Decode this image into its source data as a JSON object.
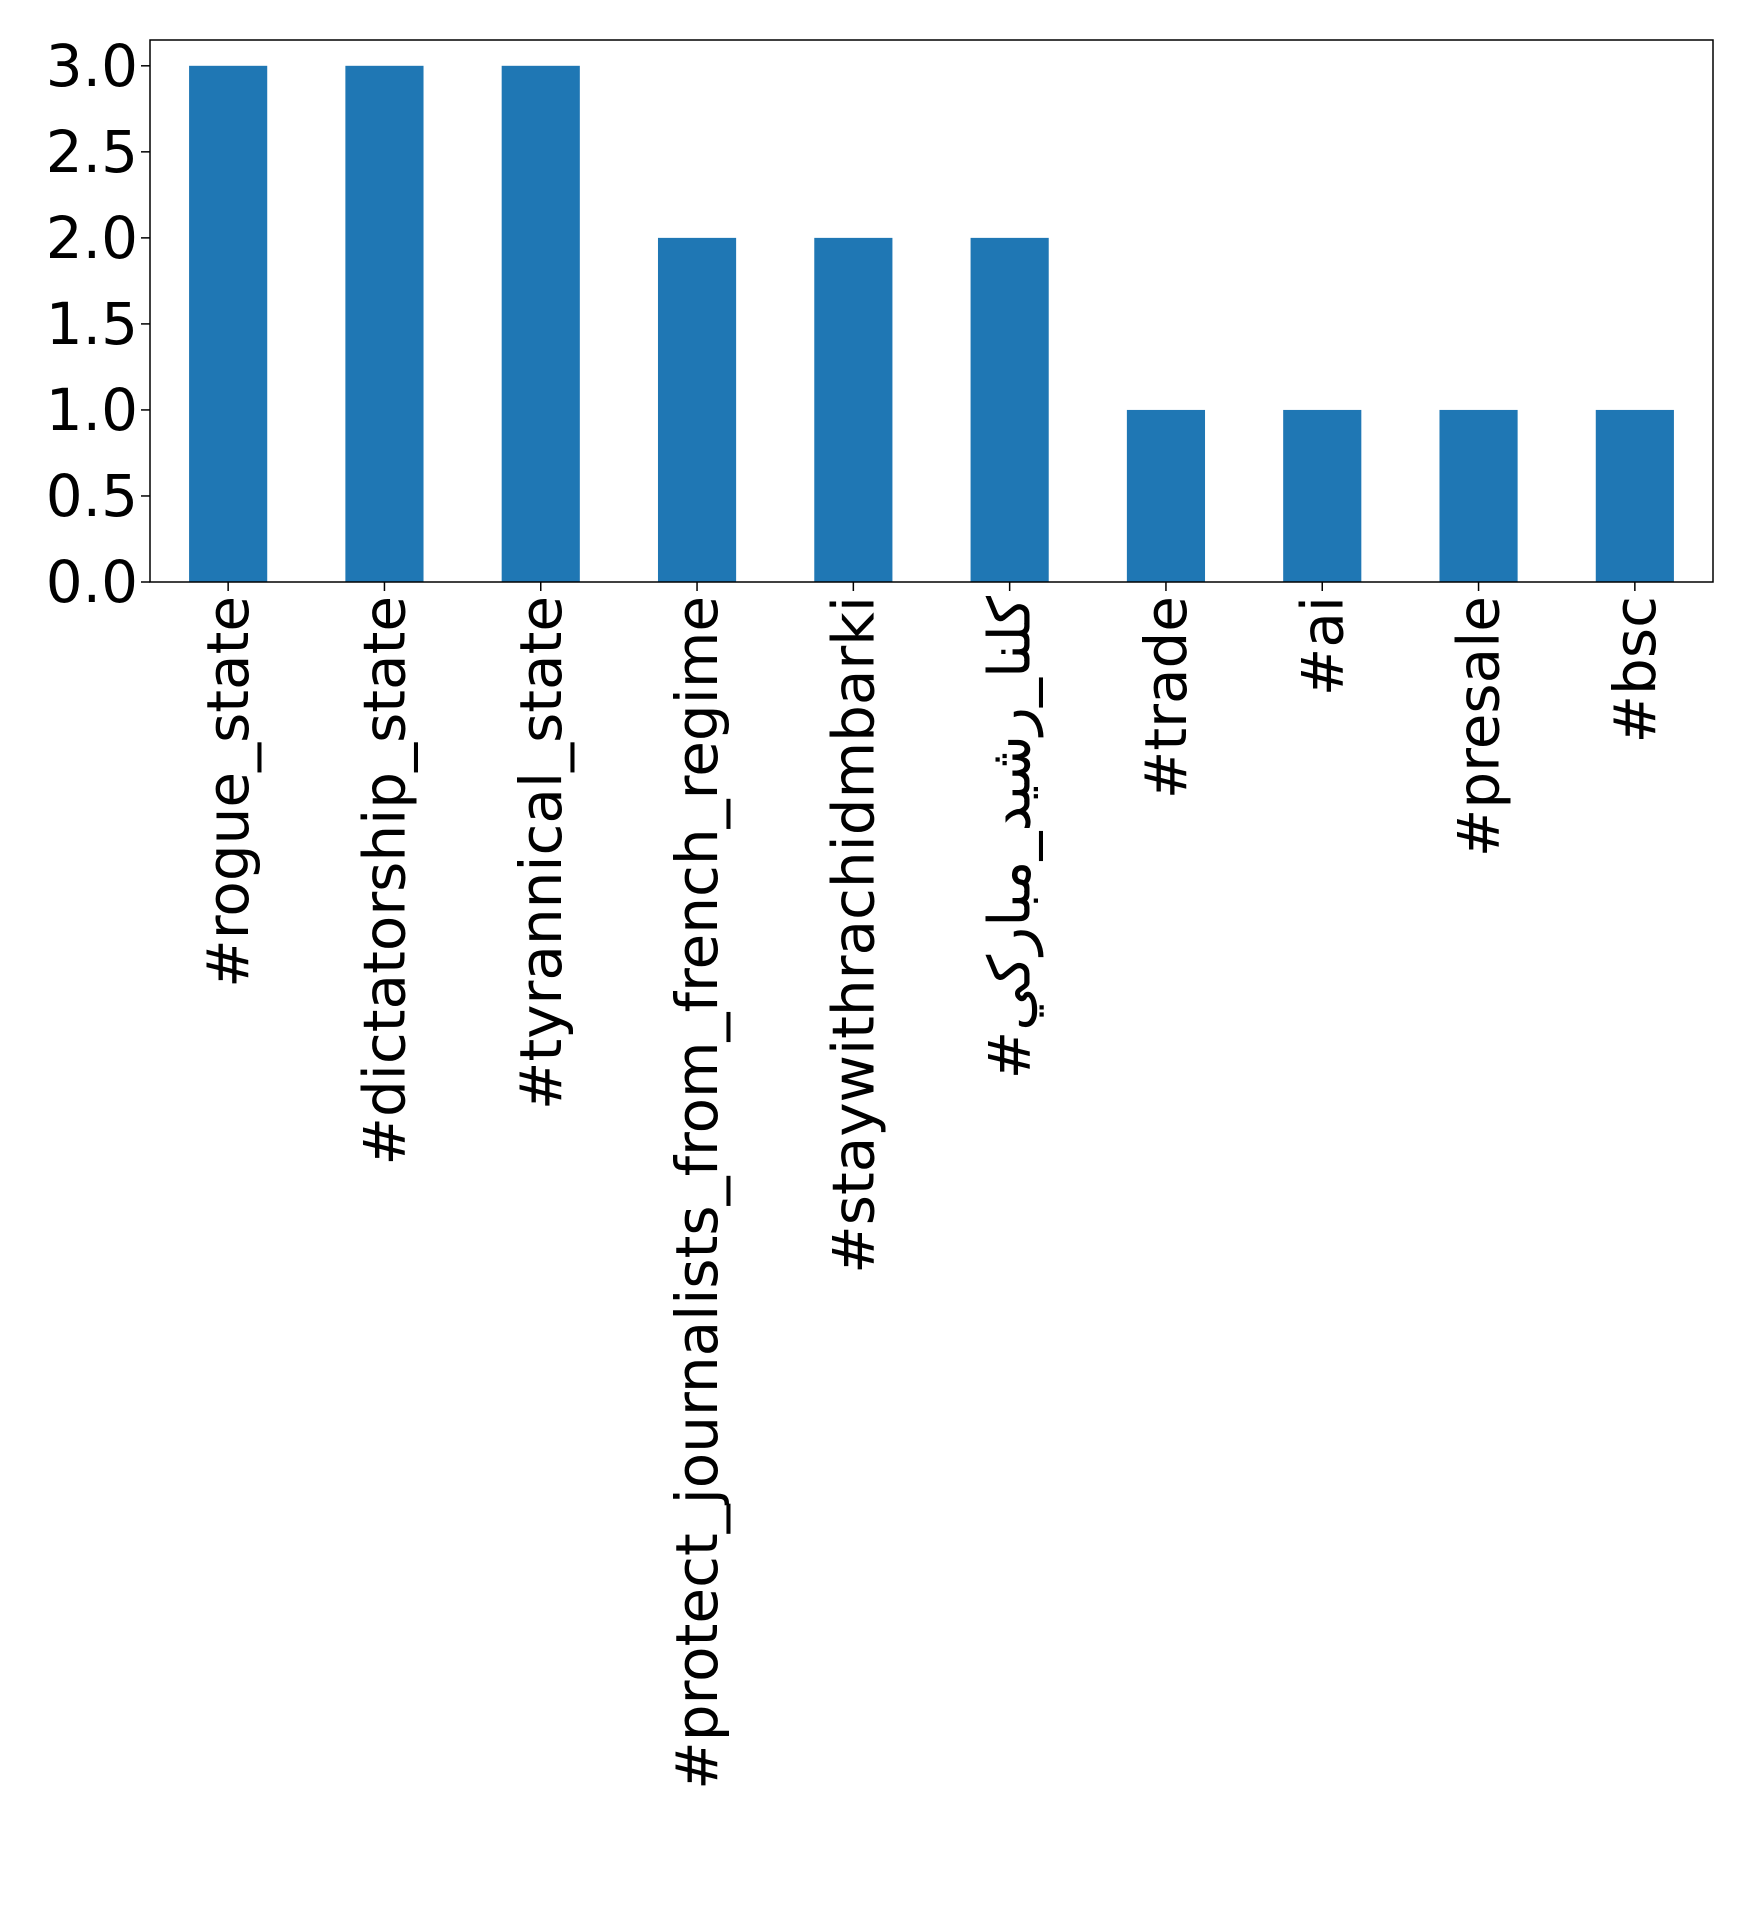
{
  "chart_data": {
    "type": "bar",
    "categories": [
      "#rogue_state",
      "#dictatorship_state",
      "#tyrannical_state",
      "#protect_journalists_from_french_regime",
      "#staywithrachidmbarki",
      "#كلنا_رشيد_مباركي",
      "#trade",
      "#ai",
      "#presale",
      "#bsc"
    ],
    "values": [
      3,
      3,
      3,
      2,
      2,
      2,
      1,
      1,
      1,
      1
    ],
    "ylim": [
      0,
      3.15
    ],
    "yticks": [
      {
        "value": 0.0,
        "label": "0.0"
      },
      {
        "value": 0.5,
        "label": "0.5"
      },
      {
        "value": 1.0,
        "label": "1.0"
      },
      {
        "value": 1.5,
        "label": "1.5"
      },
      {
        "value": 2.0,
        "label": "2.0"
      },
      {
        "value": 2.5,
        "label": "2.5"
      },
      {
        "value": 3.0,
        "label": "3.0"
      }
    ],
    "title": "",
    "xlabel": "",
    "ylabel": "",
    "grid": false,
    "bar_color": "#1f77b4"
  }
}
